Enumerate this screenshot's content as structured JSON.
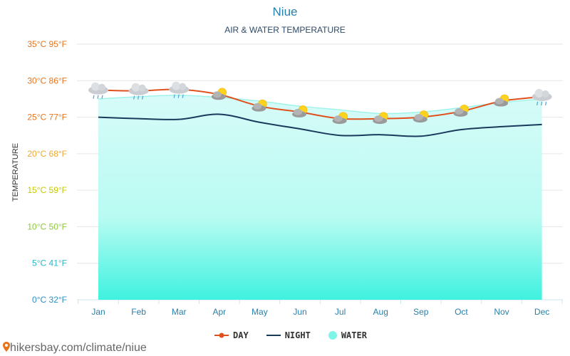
{
  "chart_data": {
    "type": "line",
    "title": "Niue",
    "subtitle": "AIR & WATER TEMPERATURE",
    "ylabel": "TEMPERATURE",
    "xlabel": "",
    "categories": [
      "Jan",
      "Feb",
      "Mar",
      "Apr",
      "May",
      "Jun",
      "Jul",
      "Aug",
      "Sep",
      "Oct",
      "Nov",
      "Dec"
    ],
    "ylim": [
      0,
      35
    ],
    "y_ticks": [
      {
        "value": 35,
        "label": "35°C 95°F",
        "color": "#e8741c"
      },
      {
        "value": 30,
        "label": "30°C 86°F",
        "color": "#e8741c"
      },
      {
        "value": 25,
        "label": "25°C 77°F",
        "color": "#e8741c"
      },
      {
        "value": 20,
        "label": "20°C 68°F",
        "color": "#f0a830"
      },
      {
        "value": 15,
        "label": "15°C 59°F",
        "color": "#c8c800"
      },
      {
        "value": 10,
        "label": "10°C 50°F",
        "color": "#8cc83c"
      },
      {
        "value": 5,
        "label": "5°C 41°F",
        "color": "#2ab8c8"
      },
      {
        "value": 0,
        "label": "0°C 32°F",
        "color": "#2a90c8"
      }
    ],
    "grid": true,
    "legend_position": "bottom",
    "series": [
      {
        "name": "DAY",
        "color": "#e0501c",
        "values": [
          28.7,
          28.6,
          28.8,
          28.1,
          26.5,
          25.7,
          24.8,
          24.8,
          25.0,
          25.8,
          27.2,
          27.8
        ]
      },
      {
        "name": "NIGHT",
        "color": "#1a3a5c",
        "values": [
          25.0,
          24.8,
          24.7,
          25.4,
          24.3,
          23.4,
          22.5,
          22.6,
          22.4,
          23.3,
          23.7,
          24.0
        ]
      },
      {
        "name": "WATER",
        "color": "#7ff5ea",
        "values": [
          27.5,
          27.8,
          28.0,
          27.7,
          27.2,
          26.5,
          26.0,
          25.5,
          25.7,
          26.3,
          27.0,
          27.5
        ]
      }
    ],
    "weather_icons": [
      "rain-cloud-icon",
      "rain-cloud-icon",
      "rain-cloud-icon",
      "partly-cloudy-icon",
      "partly-cloudy-icon",
      "partly-cloudy-icon",
      "partly-cloudy-icon",
      "partly-cloudy-icon",
      "partly-cloudy-icon",
      "partly-cloudy-icon",
      "partly-cloudy-icon",
      "rain-cloud-icon"
    ]
  },
  "credit": "hikersbay.com/climate/niue"
}
